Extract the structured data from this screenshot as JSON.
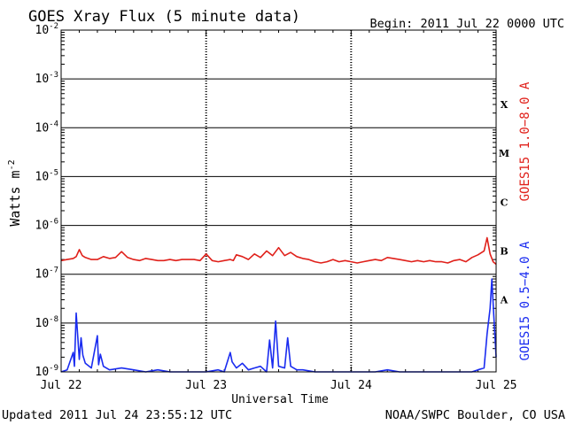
{
  "header": {
    "title": "GOES Xray Flux (5 minute data)",
    "begin": "Begin:  2011 Jul 22 0000 UTC"
  },
  "footer": {
    "updated": "Updated 2011 Jul 24 23:55:12 UTC",
    "credit": "NOAA/SWPC Boulder, CO USA"
  },
  "colors": {
    "long_channel": "#e0201a",
    "short_channel": "#1a2cf0",
    "axis": "#000000"
  },
  "chart_data": {
    "type": "line",
    "xlabel": "Universal Time",
    "ylabel_text": "Watts m",
    "ylabel_superscript": "-2",
    "yscale": "log",
    "ylim": [
      1e-09,
      0.01
    ],
    "xlim": [
      "2011-07-22T00:00",
      "2011-07-25T00:00"
    ],
    "x_ticks": [
      "Jul 22",
      "Jul 23",
      "Jul 24",
      "Jul 25"
    ],
    "y_ticks": [
      {
        "base": "10",
        "exp": "-2",
        "value": 0.01
      },
      {
        "base": "10",
        "exp": "-3",
        "value": 0.001
      },
      {
        "base": "10",
        "exp": "-4",
        "value": 0.0001
      },
      {
        "base": "10",
        "exp": "-5",
        "value": 1e-05
      },
      {
        "base": "10",
        "exp": "-6",
        "value": 1e-06
      },
      {
        "base": "10",
        "exp": "-7",
        "value": 1e-07
      },
      {
        "base": "10",
        "exp": "-8",
        "value": 1e-08
      },
      {
        "base": "10",
        "exp": "-9",
        "value": 1e-09
      }
    ],
    "flare_classes": [
      {
        "label": "X",
        "flux": 0.0003
      },
      {
        "label": "M",
        "flux": 3e-05
      },
      {
        "label": "C",
        "flux": 3e-06
      },
      {
        "label": "B",
        "flux": 3e-07
      },
      {
        "label": "A",
        "flux": 3e-08
      }
    ],
    "series": [
      {
        "name": "GOES15 1.0−8.0 A",
        "channel": "long",
        "x_hours": [
          0,
          1,
          2,
          2.5,
          3,
          3.5,
          4,
          5,
          6,
          7,
          8,
          9,
          10,
          11,
          12,
          13,
          14,
          15,
          16,
          17,
          18,
          19,
          20,
          21,
          22,
          23,
          24,
          25,
          26,
          27,
          28,
          28.5,
          29,
          30,
          31,
          32,
          33,
          34,
          35,
          36,
          37,
          38,
          39,
          40,
          41,
          42,
          43,
          44,
          45,
          46,
          47,
          48,
          49,
          50,
          51,
          52,
          53,
          54,
          55,
          56,
          57,
          58,
          59,
          60,
          61,
          62,
          63,
          64,
          65,
          66,
          67,
          68,
          69,
          70,
          70.5,
          71,
          71.5,
          72
        ],
        "y": [
          1.9e-07,
          2e-07,
          2.1e-07,
          2.3e-07,
          3.2e-07,
          2.4e-07,
          2.2e-07,
          2e-07,
          2e-07,
          2.3e-07,
          2.1e-07,
          2.2e-07,
          2.9e-07,
          2.2e-07,
          2e-07,
          1.9e-07,
          2.1e-07,
          2e-07,
          1.9e-07,
          1.9e-07,
          2e-07,
          1.9e-07,
          2e-07,
          2e-07,
          2e-07,
          1.9e-07,
          2.6e-07,
          1.9e-07,
          1.8e-07,
          1.9e-07,
          2e-07,
          1.9e-07,
          2.5e-07,
          2.3e-07,
          2e-07,
          2.6e-07,
          2.2e-07,
          3e-07,
          2.4e-07,
          3.5e-07,
          2.4e-07,
          2.8e-07,
          2.3e-07,
          2.1e-07,
          2e-07,
          1.8e-07,
          1.7e-07,
          1.8e-07,
          2e-07,
          1.8e-07,
          1.9e-07,
          1.8e-07,
          1.7e-07,
          1.8e-07,
          1.9e-07,
          2e-07,
          1.9e-07,
          2.2e-07,
          2.1e-07,
          2e-07,
          1.9e-07,
          1.8e-07,
          1.9e-07,
          1.8e-07,
          1.9e-07,
          1.8e-07,
          1.8e-07,
          1.7e-07,
          1.9e-07,
          2e-07,
          1.8e-07,
          2.2e-07,
          2.5e-07,
          3e-07,
          5.6e-07,
          2.6e-07,
          1.8e-07,
          1.6e-07
        ]
      },
      {
        "name": "GOES15 0.5−4.0 A",
        "channel": "short",
        "x_hours": [
          0,
          1,
          2,
          2.2,
          2.5,
          3,
          3.3,
          3.6,
          4,
          5,
          6,
          6.2,
          6.5,
          7,
          8,
          10,
          12,
          14,
          16,
          18,
          20,
          22,
          24,
          26,
          27,
          28,
          28.3,
          29,
          30,
          31,
          32,
          33,
          34,
          34.5,
          35,
          35.5,
          36,
          37,
          37.5,
          38,
          39,
          40,
          42,
          44,
          46,
          48,
          50,
          52,
          54,
          56,
          58,
          60,
          62,
          64,
          66,
          68,
          69,
          70,
          70.5,
          71,
          71.3,
          71.6,
          72
        ],
        "y": [
          1e-09,
          1.1e-09,
          2.5e-09,
          1.3e-09,
          1.6e-08,
          1.8e-09,
          5e-09,
          2.2e-09,
          1.5e-09,
          1.2e-09,
          5.5e-09,
          1.4e-09,
          2.3e-09,
          1.3e-09,
          1.1e-09,
          1.2e-09,
          1.1e-09,
          1e-09,
          1.1e-09,
          1e-09,
          1e-09,
          1e-09,
          1e-09,
          1.1e-09,
          1e-09,
          2.5e-09,
          1.6e-09,
          1.2e-09,
          1.5e-09,
          1.1e-09,
          1.2e-09,
          1.3e-09,
          1e-09,
          4.5e-09,
          1.2e-09,
          1.1e-08,
          1.3e-09,
          1.2e-09,
          5e-09,
          1.3e-09,
          1.1e-09,
          1.1e-09,
          1e-09,
          1e-09,
          1e-09,
          1e-09,
          1e-09,
          1e-09,
          1.1e-09,
          1e-09,
          1e-09,
          1e-09,
          1e-09,
          1e-09,
          1e-09,
          1e-09,
          1.1e-09,
          1.2e-09,
          6e-09,
          2e-08,
          8e-08,
          1.5e-08,
          2e-09
        ]
      }
    ],
    "series_labels": [
      {
        "text": "GOES15 1.0−8.0 A",
        "color": "#e0201a"
      },
      {
        "text": "GOES15 0.5−4.0 A",
        "color": "#1a2cf0"
      }
    ]
  }
}
